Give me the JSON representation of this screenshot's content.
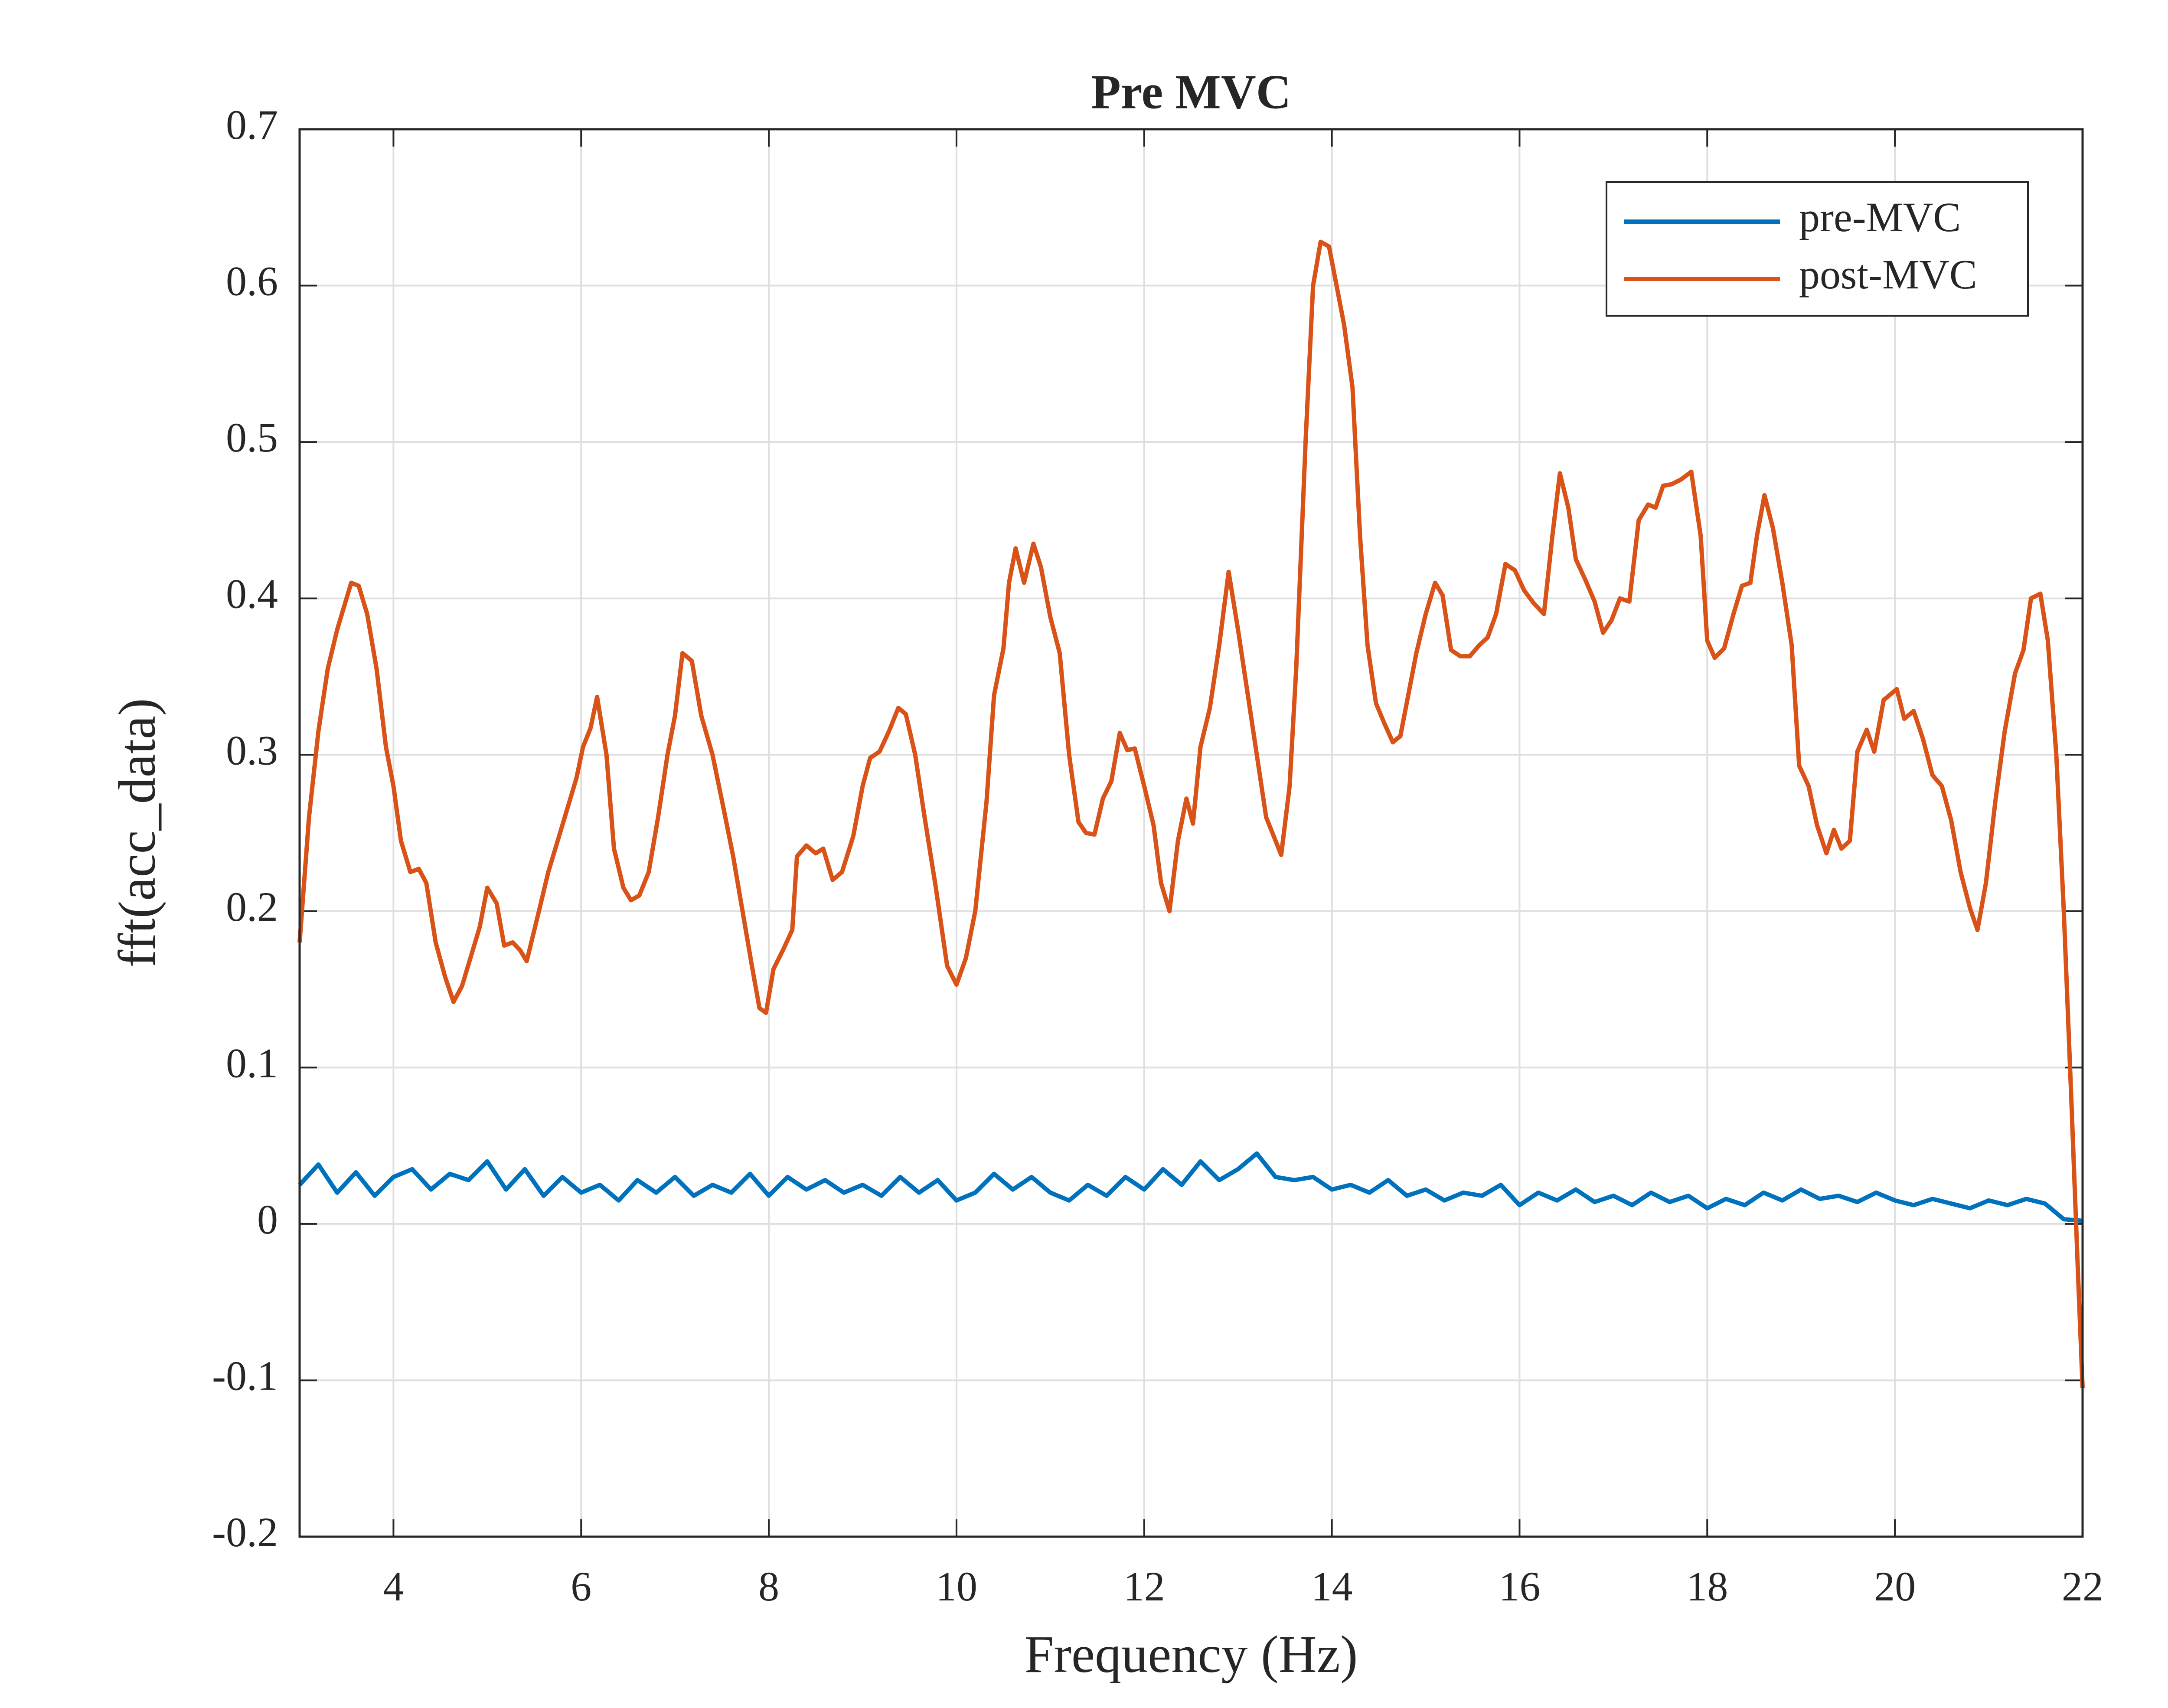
{
  "chart_data": {
    "type": "line",
    "title": "Pre MVC",
    "xlabel": "Frequency (Hz)",
    "ylabel": "fft(acc_data)",
    "xlim": [
      3,
      22
    ],
    "ylim": [
      -0.2,
      0.7
    ],
    "xticks": [
      4,
      6,
      8,
      10,
      12,
      14,
      16,
      18,
      20,
      22
    ],
    "yticks": [
      -0.2,
      -0.1,
      0,
      0.1,
      0.2,
      0.3,
      0.4,
      0.5,
      0.6,
      0.7
    ],
    "grid": true,
    "legend": "upper right",
    "series": [
      {
        "name": "pre-MVC",
        "color": "#0072BD",
        "x": [
          3.0,
          3.2,
          3.4,
          3.6,
          3.8,
          4.0,
          4.2,
          4.4,
          4.6,
          4.8,
          5.0,
          5.2,
          5.4,
          5.6,
          5.8,
          6.0,
          6.2,
          6.4,
          6.6,
          6.8,
          7.0,
          7.2,
          7.4,
          7.6,
          7.8,
          8.0,
          8.2,
          8.4,
          8.6,
          8.8,
          9.0,
          9.2,
          9.4,
          9.6,
          9.8,
          10.0,
          10.2,
          10.4,
          10.6,
          10.8,
          11.0,
          11.2,
          11.4,
          11.6,
          11.8,
          12.0,
          12.2,
          12.4,
          12.6,
          12.8,
          13.0,
          13.2,
          13.4,
          13.6,
          13.8,
          14.0,
          14.2,
          14.4,
          14.6,
          14.8,
          15.0,
          15.2,
          15.4,
          15.6,
          15.8,
          16.0,
          16.2,
          16.4,
          16.6,
          16.8,
          17.0,
          17.2,
          17.4,
          17.6,
          17.8,
          18.0,
          18.2,
          18.4,
          18.6,
          18.8,
          19.0,
          19.2,
          19.4,
          19.6,
          19.8,
          20.0,
          20.2,
          20.4,
          20.6,
          20.8,
          21.0,
          21.2,
          21.4,
          21.6,
          21.8,
          22.0
        ],
        "values": [
          0.025,
          0.038,
          0.02,
          0.033,
          0.018,
          0.03,
          0.035,
          0.022,
          0.032,
          0.028,
          0.04,
          0.022,
          0.035,
          0.018,
          0.03,
          0.02,
          0.025,
          0.015,
          0.028,
          0.02,
          0.03,
          0.018,
          0.025,
          0.02,
          0.032,
          0.018,
          0.03,
          0.022,
          0.028,
          0.02,
          0.025,
          0.018,
          0.03,
          0.02,
          0.028,
          0.015,
          0.02,
          0.032,
          0.022,
          0.03,
          0.02,
          0.015,
          0.025,
          0.018,
          0.03,
          0.022,
          0.035,
          0.025,
          0.04,
          0.028,
          0.035,
          0.045,
          0.03,
          0.028,
          0.03,
          0.022,
          0.025,
          0.02,
          0.028,
          0.018,
          0.022,
          0.015,
          0.02,
          0.018,
          0.025,
          0.012,
          0.02,
          0.015,
          0.022,
          0.014,
          0.018,
          0.012,
          0.02,
          0.014,
          0.018,
          0.01,
          0.016,
          0.012,
          0.02,
          0.015,
          0.022,
          0.016,
          0.018,
          0.014,
          0.02,
          0.015,
          0.012,
          0.016,
          0.013,
          0.01,
          0.015,
          0.012,
          0.016,
          0.013,
          0.003,
          0.002
        ]
      },
      {
        "name": "post-MVC",
        "color": "#D95319",
        "x": [
          3.0,
          3.1,
          3.2,
          3.3,
          3.4,
          3.55,
          3.63,
          3.72,
          3.82,
          3.92,
          4.0,
          4.08,
          4.18,
          4.27,
          4.35,
          4.45,
          4.55,
          4.64,
          4.73,
          4.83,
          4.92,
          5.0,
          5.1,
          5.18,
          5.27,
          5.35,
          5.42,
          5.55,
          5.65,
          5.8,
          5.95,
          6.02,
          6.1,
          6.17,
          6.27,
          6.35,
          6.45,
          6.53,
          6.62,
          6.72,
          6.82,
          6.92,
          7.0,
          7.08,
          7.18,
          7.28,
          7.4,
          7.52,
          7.62,
          7.72,
          7.82,
          7.9,
          7.97,
          8.05,
          8.15,
          8.25,
          8.3,
          8.4,
          8.5,
          8.58,
          8.68,
          8.78,
          8.9,
          9.0,
          9.08,
          9.18,
          9.28,
          9.38,
          9.46,
          9.56,
          9.66,
          9.78,
          9.9,
          10.0,
          10.1,
          10.2,
          10.32,
          10.4,
          10.5,
          10.56,
          10.63,
          10.72,
          10.82,
          10.9,
          11.0,
          11.1,
          11.2,
          11.3,
          11.38,
          11.47,
          11.56,
          11.65,
          11.74,
          11.82,
          11.9,
          12.0,
          12.1,
          12.18,
          12.27,
          12.36,
          12.45,
          12.52,
          12.6,
          12.7,
          12.8,
          12.9,
          13.0,
          13.1,
          13.2,
          13.3,
          13.38,
          13.46,
          13.55,
          13.62,
          13.72,
          13.8,
          13.88,
          13.97,
          14.05,
          14.13,
          14.22,
          14.3,
          14.38,
          14.47,
          14.56,
          14.65,
          14.73,
          14.82,
          14.9,
          15.0,
          15.1,
          15.18,
          15.27,
          15.37,
          15.47,
          15.57,
          15.66,
          15.75,
          15.85,
          15.95,
          16.05,
          16.15,
          16.26,
          16.35,
          16.43,
          16.52,
          16.6,
          16.7,
          16.8,
          16.89,
          16.98,
          17.07,
          17.17,
          17.27,
          17.37,
          17.45,
          17.53,
          17.62,
          17.72,
          17.83,
          17.93,
          18.0,
          18.08,
          18.18,
          18.28,
          18.37,
          18.46,
          18.53,
          18.61,
          18.7,
          18.8,
          18.9,
          18.98,
          19.08,
          19.17,
          19.27,
          19.35,
          19.43,
          19.52,
          19.6,
          19.7,
          19.78,
          19.88,
          20.02,
          20.1,
          20.2,
          20.3,
          20.4,
          20.5,
          20.6,
          20.7,
          20.8,
          20.88,
          20.97,
          21.07,
          21.17,
          21.28,
          21.37,
          21.45,
          21.55,
          21.63,
          21.72,
          21.8,
          21.88,
          21.95,
          22.0
        ],
        "values": [
          0.18,
          0.26,
          0.315,
          0.355,
          0.38,
          0.41,
          0.408,
          0.39,
          0.355,
          0.305,
          0.28,
          0.245,
          0.225,
          0.227,
          0.218,
          0.18,
          0.158,
          0.142,
          0.152,
          0.172,
          0.19,
          0.215,
          0.205,
          0.178,
          0.18,
          0.175,
          0.168,
          0.2,
          0.225,
          0.255,
          0.285,
          0.305,
          0.317,
          0.337,
          0.3,
          0.24,
          0.215,
          0.207,
          0.21,
          0.225,
          0.26,
          0.3,
          0.325,
          0.365,
          0.36,
          0.325,
          0.3,
          0.265,
          0.235,
          0.2,
          0.165,
          0.138,
          0.135,
          0.163,
          0.175,
          0.188,
          0.235,
          0.242,
          0.237,
          0.24,
          0.22,
          0.225,
          0.248,
          0.28,
          0.298,
          0.302,
          0.315,
          0.33,
          0.326,
          0.3,
          0.26,
          0.215,
          0.165,
          0.153,
          0.17,
          0.2,
          0.27,
          0.338,
          0.368,
          0.41,
          0.432,
          0.41,
          0.435,
          0.42,
          0.388,
          0.365,
          0.3,
          0.257,
          0.25,
          0.249,
          0.272,
          0.283,
          0.314,
          0.303,
          0.304,
          0.28,
          0.255,
          0.218,
          0.2,
          0.245,
          0.272,
          0.256,
          0.305,
          0.33,
          0.37,
          0.417,
          0.38,
          0.34,
          0.3,
          0.26,
          0.248,
          0.236,
          0.28,
          0.355,
          0.5,
          0.6,
          0.628,
          0.625,
          0.6,
          0.575,
          0.535,
          0.44,
          0.37,
          0.333,
          0.32,
          0.308,
          0.312,
          0.34,
          0.365,
          0.39,
          0.41,
          0.402,
          0.367,
          0.363,
          0.363,
          0.37,
          0.375,
          0.39,
          0.422,
          0.418,
          0.405,
          0.397,
          0.39,
          0.44,
          0.48,
          0.458,
          0.425,
          0.412,
          0.398,
          0.378,
          0.386,
          0.4,
          0.398,
          0.45,
          0.46,
          0.458,
          0.472,
          0.473,
          0.476,
          0.481,
          0.44,
          0.373,
          0.362,
          0.368,
          0.39,
          0.408,
          0.41,
          0.44,
          0.466,
          0.445,
          0.41,
          0.37,
          0.293,
          0.28,
          0.255,
          0.237,
          0.252,
          0.24,
          0.245,
          0.302,
          0.316,
          0.302,
          0.335,
          0.342,
          0.323,
          0.328,
          0.31,
          0.287,
          0.28,
          0.258,
          0.225,
          0.202,
          0.188,
          0.218,
          0.27,
          0.315,
          0.352,
          0.367,
          0.4,
          0.403,
          0.373,
          0.3,
          0.2,
          0.08,
          -0.03,
          -0.105
        ]
      }
    ]
  }
}
